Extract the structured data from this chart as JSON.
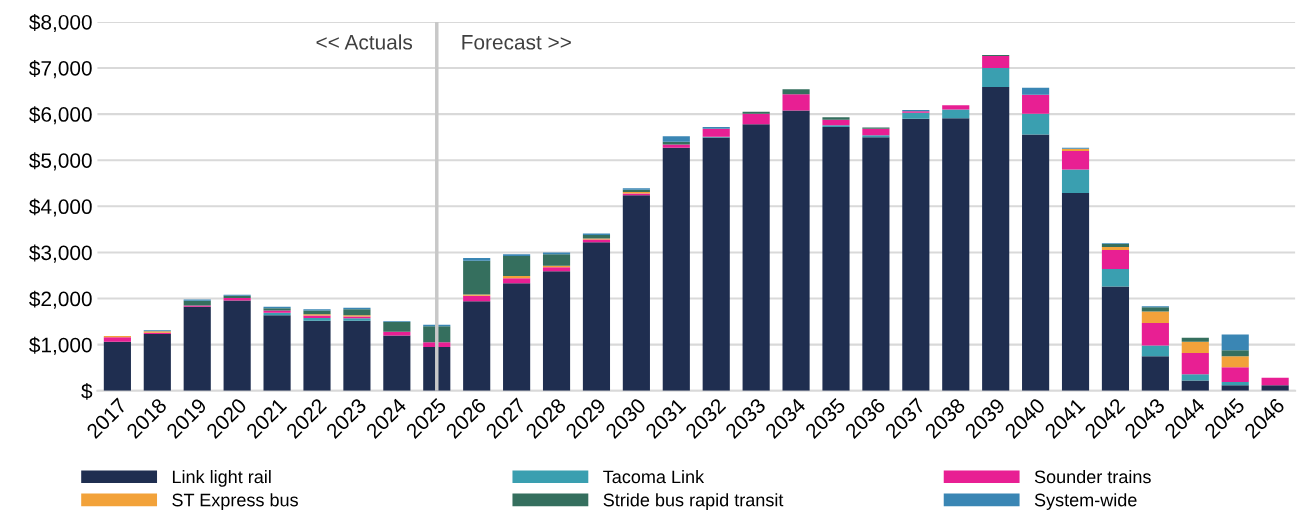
{
  "chart_data": {
    "type": "bar",
    "stacked": true,
    "categories": [
      "2017",
      "2018",
      "2019",
      "2020",
      "2021",
      "2022",
      "2023",
      "2024",
      "2025",
      "2026",
      "2027",
      "2028",
      "2029",
      "2030",
      "2031",
      "2032",
      "2033",
      "2034",
      "2035",
      "2036",
      "2037",
      "2038",
      "2039",
      "2040",
      "2041",
      "2042",
      "2043",
      "2044",
      "2045",
      "2046"
    ],
    "series": [
      {
        "name": "Link light rail",
        "color": "#1f2e50",
        "values": [
          1060,
          1230,
          1820,
          1960,
          1640,
          1520,
          1520,
          1200,
          950,
          1940,
          2330,
          2590,
          3220,
          4240,
          5270,
          5490,
          5780,
          6080,
          5720,
          5500,
          5900,
          5910,
          6590,
          5560,
          4290,
          2260,
          750,
          220,
          120,
          120
        ]
      },
      {
        "name": "Tacoma Link",
        "color": "#3a9fb0",
        "values": [
          0,
          0,
          0,
          0,
          50,
          60,
          50,
          0,
          0,
          0,
          0,
          0,
          0,
          0,
          0,
          20,
          0,
          0,
          40,
          40,
          130,
          190,
          410,
          450,
          510,
          380,
          230,
          140,
          70,
          0
        ]
      },
      {
        "name": "Sounder trains",
        "color": "#e81f93",
        "values": [
          100,
          30,
          30,
          50,
          50,
          50,
          40,
          80,
          100,
          120,
          110,
          90,
          60,
          40,
          70,
          170,
          230,
          350,
          120,
          140,
          30,
          90,
          260,
          410,
          400,
          410,
          490,
          460,
          320,
          160
        ]
      },
      {
        "name": "ST Express bus",
        "color": "#f2a23a",
        "values": [
          30,
          30,
          0,
          0,
          0,
          30,
          30,
          0,
          0,
          30,
          50,
          30,
          20,
          30,
          0,
          0,
          0,
          0,
          0,
          0,
          0,
          0,
          0,
          0,
          50,
          70,
          250,
          240,
          240,
          0
        ]
      },
      {
        "name": "Stride bus rapid transit",
        "color": "#356f5e",
        "values": [
          0,
          0,
          100,
          50,
          50,
          80,
          130,
          210,
          350,
          730,
          430,
          250,
          80,
          50,
          60,
          0,
          40,
          110,
          50,
          30,
          0,
          0,
          20,
          0,
          0,
          60,
          90,
          90,
          130,
          0
        ]
      },
      {
        "name": "System-wide",
        "color": "#3a86b4",
        "values": [
          0,
          20,
          30,
          20,
          30,
          30,
          30,
          20,
          30,
          60,
          40,
          40,
          30,
          30,
          120,
          40,
          0,
          0,
          0,
          0,
          30,
          0,
          0,
          150,
          20,
          20,
          20,
          0,
          340,
          0
        ]
      }
    ],
    "ylim": [
      0,
      8000
    ],
    "yticks": [
      {
        "value": 0,
        "label": "$"
      },
      {
        "value": 1000,
        "label": "$1,000"
      },
      {
        "value": 2000,
        "label": "$2,000"
      },
      {
        "value": 3000,
        "label": "$3,000"
      },
      {
        "value": 4000,
        "label": "$4,000"
      },
      {
        "value": 5000,
        "label": "$5,000"
      },
      {
        "value": 6000,
        "label": "$6,000"
      },
      {
        "value": 7000,
        "label": "$7,000"
      },
      {
        "value": 8000,
        "label": "$8,000"
      }
    ],
    "grid": "y",
    "legend": "bottom",
    "ref_lines": [
      {
        "axis": "x",
        "value": "2025",
        "color": "#c8c8c8"
      }
    ],
    "annotations": [
      "<< Actuals",
      "Forecast >>"
    ]
  }
}
